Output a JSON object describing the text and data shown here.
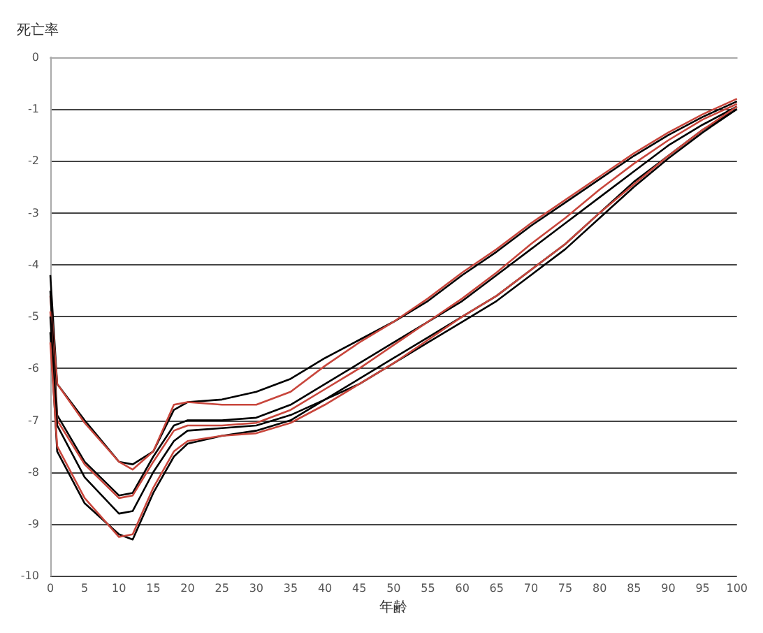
{
  "chart_data": {
    "type": "line",
    "xlabel": "年齢",
    "ylabel": "死亡率",
    "x": [
      0,
      1,
      5,
      10,
      12,
      15,
      18,
      20,
      25,
      30,
      35,
      40,
      45,
      50,
      55,
      60,
      65,
      70,
      75,
      80,
      85,
      90,
      95,
      100
    ],
    "xlim": [
      0,
      100
    ],
    "xticks": [
      0,
      5,
      10,
      15,
      20,
      25,
      30,
      35,
      40,
      45,
      50,
      55,
      60,
      65,
      70,
      75,
      80,
      85,
      90,
      95,
      100
    ],
    "ylim": [
      -10,
      0
    ],
    "yticks": [
      -10,
      -9,
      -8,
      -7,
      -6,
      -5,
      -4,
      -3,
      -2,
      -1,
      0
    ],
    "grid": "y",
    "marker": "none",
    "line_style": "solid",
    "series": [
      {
        "color": "#000000",
        "values": [
          -4.2,
          -6.3,
          -7.0,
          -7.8,
          -7.85,
          -7.6,
          -6.8,
          -6.65,
          -6.6,
          -6.45,
          -6.2,
          -5.8,
          -5.45,
          -5.1,
          -4.7,
          -4.2,
          -3.75,
          -3.25,
          -2.8,
          -2.35,
          -1.9,
          -1.5,
          -1.15,
          -0.85
        ]
      },
      {
        "color": "#c8463c",
        "values": [
          -4.6,
          -6.3,
          -7.05,
          -7.8,
          -7.95,
          -7.6,
          -6.7,
          -6.65,
          -6.7,
          -6.7,
          -6.45,
          -5.95,
          -5.5,
          -5.1,
          -4.65,
          -4.15,
          -3.7,
          -3.2,
          -2.75,
          -2.3,
          -1.85,
          -1.45,
          -1.1,
          -0.8
        ]
      },
      {
        "color": "#000000",
        "values": [
          -4.5,
          -6.9,
          -7.8,
          -8.45,
          -8.4,
          -7.7,
          -7.1,
          -7.0,
          -7.0,
          -6.95,
          -6.7,
          -6.3,
          -5.9,
          -5.5,
          -5.1,
          -4.7,
          -4.2,
          -3.7,
          -3.2,
          -2.7,
          -2.2,
          -1.7,
          -1.3,
          -0.95
        ]
      },
      {
        "color": "#c8463c",
        "values": [
          -4.9,
          -7.0,
          -7.85,
          -8.5,
          -8.45,
          -7.8,
          -7.2,
          -7.1,
          -7.1,
          -7.05,
          -6.8,
          -6.4,
          -6.0,
          -5.55,
          -5.1,
          -4.65,
          -4.15,
          -3.6,
          -3.1,
          -2.55,
          -2.05,
          -1.6,
          -1.2,
          -0.9
        ]
      },
      {
        "color": "#000000",
        "values": [
          -5.0,
          -7.1,
          -8.1,
          -8.8,
          -8.75,
          -8.0,
          -7.4,
          -7.2,
          -7.15,
          -7.1,
          -6.9,
          -6.6,
          -6.2,
          -5.8,
          -5.4,
          -5.0,
          -4.6,
          -4.1,
          -3.6,
          -3.0,
          -2.4,
          -1.9,
          -1.4,
          -1.0
        ]
      },
      {
        "color": "#000000",
        "values": [
          -5.3,
          -7.6,
          -8.6,
          -9.2,
          -9.3,
          -8.4,
          -7.7,
          -7.45,
          -7.3,
          -7.2,
          -7.0,
          -6.6,
          -6.3,
          -5.9,
          -5.5,
          -5.1,
          -4.7,
          -4.2,
          -3.7,
          -3.1,
          -2.5,
          -1.95,
          -1.45,
          -1.0
        ]
      },
      {
        "color": "#c8463c",
        "values": [
          -5.5,
          -7.5,
          -8.5,
          -9.25,
          -9.2,
          -8.3,
          -7.6,
          -7.4,
          -7.3,
          -7.25,
          -7.05,
          -6.7,
          -6.3,
          -5.9,
          -5.45,
          -5.0,
          -4.6,
          -4.1,
          -3.6,
          -3.0,
          -2.45,
          -1.9,
          -1.4,
          -0.95
        ]
      }
    ]
  }
}
